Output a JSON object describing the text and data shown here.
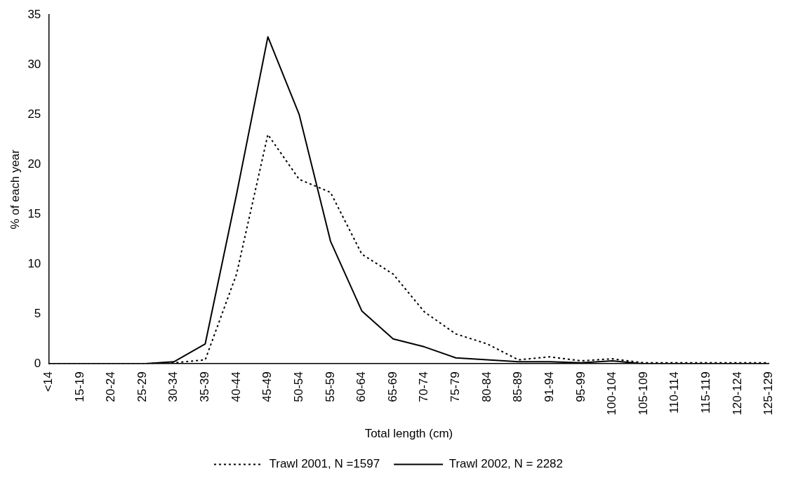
{
  "chart_data": {
    "type": "line",
    "xlabel": "Total length (cm)",
    "ylabel": "% of each year",
    "categories": [
      "<14",
      "15-19",
      "20-24",
      "25-29",
      "30-34",
      "35-39",
      "40-44",
      "45-49",
      "50-54",
      "55-59",
      "60-64",
      "65-69",
      "70-74",
      "75-79",
      "80-84",
      "85-89",
      "91-94",
      "95-99",
      "100-104",
      "105-109",
      "110-114",
      "115-119",
      "120-124",
      "125-129"
    ],
    "series": [
      {
        "name": "Trawl 2001, N =1597",
        "color": "#000000",
        "line_style": "dotted",
        "values": [
          0,
          0,
          0,
          0,
          0.1,
          0.4,
          9,
          23,
          18.5,
          17.2,
          11,
          9,
          5.2,
          3,
          2,
          0.4,
          0.7,
          0.3,
          0.5,
          0.1,
          0.1,
          0.1,
          0.1,
          0.1
        ]
      },
      {
        "name": "Trawl 2002, N = 2282",
        "color": "#000000",
        "line_style": "solid",
        "values": [
          0,
          0,
          0,
          0,
          0.2,
          2,
          17,
          32.8,
          25,
          12.3,
          5.3,
          2.5,
          1.7,
          0.6,
          0.4,
          0.2,
          0.2,
          0.1,
          0.3,
          0,
          0,
          0,
          0,
          0
        ]
      }
    ],
    "ylim": [
      0,
      35
    ],
    "yticks": [
      0,
      5,
      10,
      15,
      20,
      25,
      30,
      35
    ],
    "grid": false,
    "legend": "bottom",
    "marker": "none"
  }
}
